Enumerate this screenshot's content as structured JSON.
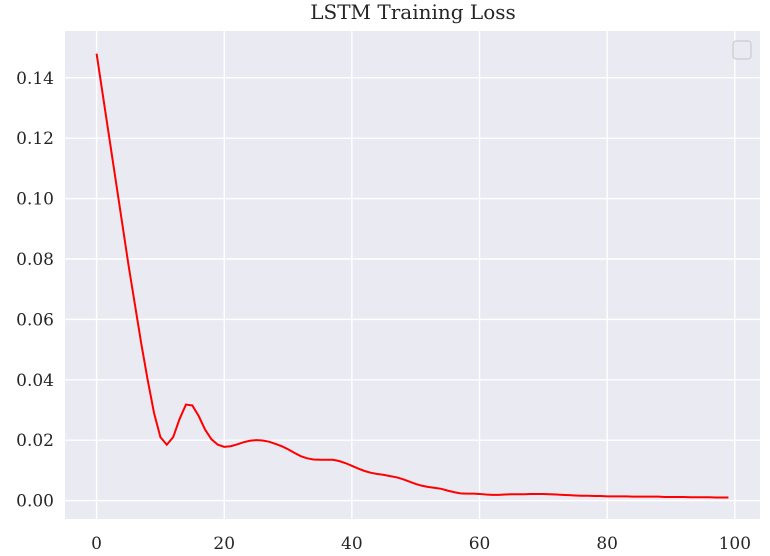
{
  "chart_data": {
    "type": "line",
    "title": "LSTM Training Loss",
    "xlabel": "",
    "ylabel": "",
    "xlim": [
      -4.95,
      103.95
    ],
    "ylim": [
      -0.0061,
      0.1555
    ],
    "xticks": [
      0,
      20,
      40,
      60,
      80,
      100
    ],
    "yticks": [
      0.0,
      0.02,
      0.04,
      0.06,
      0.08,
      0.1,
      0.12,
      0.14
    ],
    "ytick_labels": [
      "0.00",
      "0.02",
      "0.04",
      "0.06",
      "0.08",
      "0.10",
      "0.12",
      "0.14"
    ],
    "grid": true,
    "background": "#eaeaf2",
    "legend": "top-right, empty",
    "series": [
      {
        "color": "#ff0000",
        "x": [
          0,
          1,
          2,
          3,
          4,
          5,
          6,
          7,
          8,
          9,
          10,
          11,
          12,
          13,
          14,
          15,
          16,
          17,
          18,
          19,
          20,
          21,
          22,
          23,
          24,
          25,
          26,
          27,
          28,
          29,
          30,
          31,
          32,
          33,
          34,
          35,
          36,
          37,
          38,
          39,
          40,
          41,
          42,
          43,
          44,
          45,
          46,
          47,
          48,
          49,
          50,
          51,
          52,
          53,
          54,
          55,
          56,
          57,
          58,
          59,
          60,
          61,
          62,
          63,
          64,
          65,
          66,
          67,
          68,
          69,
          70,
          71,
          72,
          73,
          74,
          75,
          76,
          77,
          78,
          79,
          80,
          81,
          82,
          83,
          84,
          85,
          86,
          87,
          88,
          89,
          90,
          91,
          92,
          93,
          94,
          95,
          96,
          97,
          98,
          99
        ],
        "y": [
          0.148,
          0.134,
          0.12,
          0.106,
          0.092,
          0.078,
          0.065,
          0.052,
          0.04,
          0.029,
          0.021,
          0.0185,
          0.021,
          0.027,
          0.0318,
          0.0315,
          0.028,
          0.0235,
          0.0203,
          0.0185,
          0.0178,
          0.018,
          0.0186,
          0.0193,
          0.0198,
          0.02,
          0.0199,
          0.0195,
          0.0188,
          0.018,
          0.017,
          0.0158,
          0.0147,
          0.014,
          0.0136,
          0.0135,
          0.0135,
          0.0135,
          0.0131,
          0.0124,
          0.0115,
          0.0106,
          0.0098,
          0.0092,
          0.0088,
          0.0085,
          0.0081,
          0.0077,
          0.0071,
          0.0063,
          0.0055,
          0.0049,
          0.0045,
          0.0042,
          0.0039,
          0.0033,
          0.0028,
          0.0024,
          0.0023,
          0.0023,
          0.0022,
          0.002,
          0.0019,
          0.0019,
          0.002,
          0.0021,
          0.0021,
          0.0021,
          0.0022,
          0.0022,
          0.0022,
          0.0021,
          0.002,
          0.0019,
          0.0018,
          0.0017,
          0.0016,
          0.0016,
          0.0015,
          0.0015,
          0.0014,
          0.0014,
          0.0014,
          0.0014,
          0.0013,
          0.0013,
          0.0013,
          0.0013,
          0.0013,
          0.0012,
          0.0012,
          0.0012,
          0.0012,
          0.0011,
          0.0011,
          0.0011,
          0.0011,
          0.001,
          0.001,
          0.001
        ]
      }
    ]
  }
}
